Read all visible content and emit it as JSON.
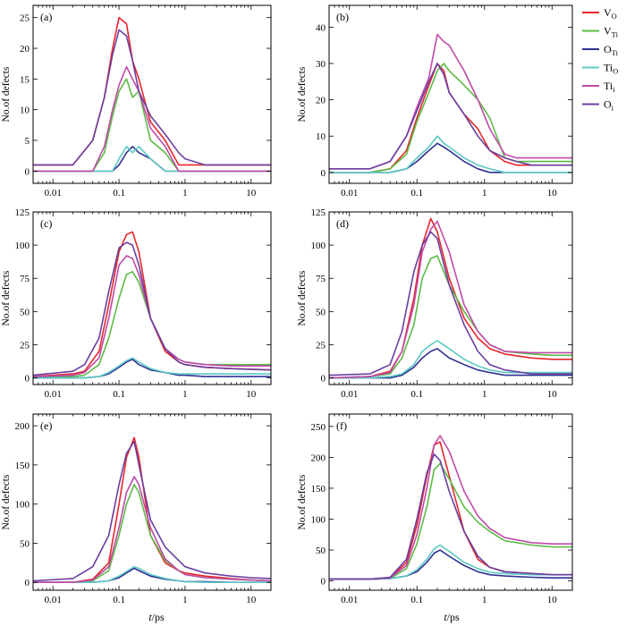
{
  "figure": {
    "xlabel_italic": "t",
    "xlabel_rest": "/ps",
    "ylabel": "No.of defects"
  },
  "legend": {
    "placement": "top-right",
    "items": [
      {
        "base": "V",
        "sub": "O",
        "color": "#e8262c"
      },
      {
        "base": "V",
        "sub": "Ti",
        "color": "#5dbb46"
      },
      {
        "base": "O",
        "sub": "Ti",
        "color": "#2e3192"
      },
      {
        "base": "Ti",
        "sub": "O",
        "color": "#5bc8c4"
      },
      {
        "base": "Ti",
        "sub": "i",
        "color": "#c04aa8"
      },
      {
        "base": "O",
        "sub": "i",
        "color": "#6a3fa0"
      }
    ]
  },
  "chart_data": [
    {
      "type": "line",
      "panel_label": "(a)",
      "x_scale": "log",
      "xlim": [
        0.005,
        20
      ],
      "x_ticks": [
        "0.01",
        "0.1",
        "1",
        "10"
      ],
      "ylim": [
        -2,
        27
      ],
      "y_ticks": [
        0,
        5,
        10,
        15,
        20,
        25
      ],
      "x": [
        0.005,
        0.02,
        0.04,
        0.06,
        0.08,
        0.1,
        0.13,
        0.16,
        0.2,
        0.3,
        0.5,
        0.8,
        1,
        2,
        5,
        20
      ],
      "series": [
        {
          "key": "V_O",
          "values": [
            1,
            1,
            5,
            12,
            20,
            25,
            24,
            18,
            15,
            8,
            5,
            1,
            1,
            1,
            1,
            1
          ]
        },
        {
          "key": "V_Ti",
          "values": [
            0,
            0,
            0,
            3,
            9,
            13,
            15,
            12,
            13,
            5,
            3,
            0,
            0,
            0,
            0,
            0
          ]
        },
        {
          "key": "O_Ti",
          "values": [
            0,
            0,
            0,
            0,
            0,
            1,
            3,
            4,
            3,
            2,
            0,
            0,
            0,
            0,
            0,
            0
          ]
        },
        {
          "key": "Ti_O",
          "values": [
            0,
            0,
            0,
            0,
            0,
            2,
            4,
            3,
            4,
            2,
            0,
            0,
            0,
            0,
            0,
            0
          ]
        },
        {
          "key": "Ti_i",
          "values": [
            0,
            0,
            0,
            4,
            10,
            14,
            17,
            15,
            13,
            7,
            4,
            0,
            0,
            0,
            0,
            0
          ]
        },
        {
          "key": "O_i",
          "values": [
            1,
            1,
            5,
            12,
            19,
            23,
            22,
            18,
            13,
            9,
            6,
            3,
            2,
            1,
            1,
            1
          ]
        }
      ]
    },
    {
      "type": "line",
      "panel_label": "(b)",
      "x_scale": "log",
      "xlim": [
        0.005,
        20
      ],
      "x_ticks": [
        "0.01",
        "0.1",
        "1",
        "10"
      ],
      "ylim": [
        -3,
        46
      ],
      "y_ticks": [
        0,
        10,
        20,
        30,
        40
      ],
      "x": [
        0.005,
        0.02,
        0.04,
        0.07,
        0.1,
        0.15,
        0.2,
        0.25,
        0.3,
        0.5,
        0.8,
        1.2,
        2,
        3,
        5,
        20
      ],
      "series": [
        {
          "key": "V_O",
          "values": [
            0,
            0,
            1,
            6,
            15,
            24,
            30,
            28,
            22,
            16,
            12,
            6,
            3,
            2,
            2,
            2
          ]
        },
        {
          "key": "V_Ti",
          "values": [
            0,
            0,
            1,
            5,
            14,
            22,
            28,
            30,
            28,
            24,
            20,
            15,
            4,
            3,
            3,
            3
          ]
        },
        {
          "key": "O_Ti",
          "values": [
            0,
            0,
            0,
            1,
            3,
            6,
            8,
            7,
            6,
            3,
            1,
            0,
            0,
            0,
            0,
            0
          ]
        },
        {
          "key": "Ti_O",
          "values": [
            0,
            0,
            0,
            1,
            4,
            7,
            10,
            8,
            7,
            4,
            2,
            1,
            0,
            0,
            0,
            0
          ]
        },
        {
          "key": "Ti_i",
          "values": [
            1,
            1,
            3,
            10,
            18,
            26,
            38,
            36,
            35,
            28,
            20,
            12,
            5,
            4,
            4,
            4
          ]
        },
        {
          "key": "O_i",
          "values": [
            1,
            1,
            3,
            10,
            17,
            25,
            30,
            27,
            22,
            16,
            10,
            6,
            4,
            3,
            2,
            2
          ]
        }
      ]
    },
    {
      "type": "line",
      "panel_label": "(c)",
      "x_scale": "log",
      "xlim": [
        0.005,
        20
      ],
      "x_ticks": [
        "0.01",
        "0.1",
        "1",
        "10"
      ],
      "ylim": [
        -5,
        125
      ],
      "y_ticks": [
        0,
        25,
        50,
        75,
        100,
        125
      ],
      "x": [
        0.005,
        0.02,
        0.03,
        0.05,
        0.07,
        0.1,
        0.13,
        0.16,
        0.2,
        0.3,
        0.5,
        0.8,
        1,
        2,
        5,
        20
      ],
      "series": [
        {
          "key": "V_O",
          "values": [
            1,
            3,
            5,
            20,
            55,
            95,
            108,
            110,
            95,
            45,
            20,
            12,
            10,
            8,
            7,
            6
          ]
        },
        {
          "key": "V_Ti",
          "values": [
            1,
            1,
            2,
            10,
            30,
            60,
            78,
            80,
            72,
            45,
            22,
            14,
            12,
            10,
            10,
            10
          ]
        },
        {
          "key": "O_Ti",
          "values": [
            0,
            0,
            0,
            1,
            3,
            8,
            12,
            14,
            10,
            6,
            4,
            2,
            2,
            1,
            1,
            1
          ]
        },
        {
          "key": "Ti_O",
          "values": [
            0,
            0,
            0,
            1,
            4,
            9,
            13,
            15,
            12,
            7,
            4,
            3,
            3,
            3,
            3,
            3
          ]
        },
        {
          "key": "Ti_i",
          "values": [
            1,
            2,
            4,
            15,
            45,
            85,
            92,
            90,
            78,
            45,
            22,
            14,
            12,
            10,
            9,
            9
          ]
        },
        {
          "key": "O_i",
          "values": [
            2,
            5,
            10,
            30,
            65,
            98,
            102,
            100,
            85,
            45,
            22,
            12,
            10,
            8,
            7,
            6
          ]
        }
      ]
    },
    {
      "type": "line",
      "panel_label": "(d)",
      "x_scale": "log",
      "xlim": [
        0.005,
        20
      ],
      "x_ticks": [
        "0.01",
        "0.1",
        "1",
        "10"
      ],
      "ylim": [
        -5,
        125
      ],
      "y_ticks": [
        0,
        25,
        50,
        75,
        100,
        125
      ],
      "x": [
        0.005,
        0.02,
        0.04,
        0.06,
        0.09,
        0.12,
        0.16,
        0.2,
        0.3,
        0.5,
        0.8,
        1.2,
        2,
        5,
        10,
        20
      ],
      "series": [
        {
          "key": "V_O",
          "values": [
            0,
            1,
            5,
            20,
            60,
            100,
            120,
            110,
            75,
            45,
            30,
            22,
            18,
            15,
            14,
            14
          ]
        },
        {
          "key": "V_Ti",
          "values": [
            0,
            1,
            3,
            15,
            40,
            75,
            90,
            92,
            70,
            50,
            35,
            25,
            20,
            18,
            17,
            17
          ]
        },
        {
          "key": "O_Ti",
          "values": [
            0,
            0,
            0,
            2,
            8,
            15,
            20,
            22,
            15,
            10,
            6,
            4,
            2,
            2,
            2,
            2
          ]
        },
        {
          "key": "Ti_O",
          "values": [
            0,
            0,
            1,
            3,
            10,
            20,
            25,
            28,
            22,
            14,
            9,
            6,
            4,
            4,
            4,
            4
          ]
        },
        {
          "key": "Ti_i",
          "values": [
            0,
            1,
            4,
            20,
            55,
            95,
            112,
            118,
            95,
            55,
            35,
            25,
            20,
            19,
            19,
            19
          ]
        },
        {
          "key": "O_i",
          "values": [
            2,
            3,
            10,
            35,
            80,
            100,
            110,
            105,
            70,
            40,
            20,
            10,
            6,
            3,
            3,
            3
          ]
        }
      ]
    },
    {
      "type": "line",
      "panel_label": "(e)",
      "x_scale": "log",
      "xlim": [
        0.005,
        20
      ],
      "x_ticks": [
        "0.01",
        "0.1",
        "1",
        "10"
      ],
      "ylim": [
        -10,
        215
      ],
      "y_ticks": [
        0,
        50,
        100,
        150,
        200
      ],
      "x": [
        0.005,
        0.02,
        0.04,
        0.07,
        0.1,
        0.13,
        0.17,
        0.2,
        0.3,
        0.5,
        0.8,
        1,
        2,
        5,
        10,
        20
      ],
      "series": [
        {
          "key": "V_O",
          "values": [
            0,
            0,
            4,
            25,
            100,
            160,
            185,
            160,
            60,
            25,
            15,
            12,
            8,
            5,
            3,
            2
          ]
        },
        {
          "key": "V_Ti",
          "values": [
            0,
            0,
            2,
            15,
            60,
            100,
            125,
            115,
            60,
            28,
            15,
            10,
            6,
            4,
            3,
            2
          ]
        },
        {
          "key": "O_Ti",
          "values": [
            0,
            0,
            0,
            2,
            6,
            12,
            18,
            15,
            8,
            4,
            2,
            1,
            1,
            0,
            0,
            0
          ]
        },
        {
          "key": "Ti_O",
          "values": [
            0,
            0,
            0,
            2,
            8,
            14,
            20,
            18,
            10,
            5,
            2,
            1,
            0,
            0,
            0,
            0
          ]
        },
        {
          "key": "Ti_i",
          "values": [
            0,
            0,
            3,
            20,
            70,
            115,
            135,
            125,
            70,
            30,
            15,
            10,
            6,
            4,
            3,
            2
          ]
        },
        {
          "key": "O_i",
          "values": [
            2,
            5,
            20,
            60,
            125,
            165,
            180,
            150,
            80,
            45,
            28,
            20,
            12,
            8,
            6,
            5
          ]
        }
      ]
    },
    {
      "type": "line",
      "panel_label": "(f)",
      "x_scale": "log",
      "xlim": [
        0.005,
        20
      ],
      "x_ticks": [
        "0.01",
        "0.1",
        "1",
        "10"
      ],
      "ylim": [
        -15,
        270
      ],
      "y_ticks": [
        0,
        50,
        100,
        150,
        200,
        250
      ],
      "x": [
        0.005,
        0.02,
        0.04,
        0.07,
        0.1,
        0.14,
        0.18,
        0.22,
        0.3,
        0.5,
        0.8,
        1.2,
        2,
        5,
        10,
        20
      ],
      "series": [
        {
          "key": "V_O",
          "values": [
            3,
            3,
            5,
            30,
            90,
            170,
            220,
            225,
            170,
            80,
            35,
            22,
            15,
            12,
            10,
            10
          ]
        },
        {
          "key": "V_Ti",
          "values": [
            3,
            3,
            4,
            20,
            60,
            120,
            180,
            190,
            165,
            120,
            95,
            80,
            65,
            58,
            55,
            55
          ]
        },
        {
          "key": "O_Ti",
          "values": [
            3,
            3,
            4,
            8,
            15,
            30,
            45,
            50,
            40,
            25,
            15,
            10,
            8,
            6,
            5,
            5
          ]
        },
        {
          "key": "Ti_O",
          "values": [
            3,
            3,
            4,
            8,
            18,
            35,
            52,
            58,
            48,
            30,
            20,
            14,
            12,
            10,
            10,
            10
          ]
        },
        {
          "key": "Ti_i",
          "values": [
            3,
            3,
            5,
            25,
            75,
            150,
            220,
            235,
            210,
            145,
            105,
            85,
            70,
            62,
            60,
            60
          ]
        },
        {
          "key": "O_i",
          "values": [
            3,
            3,
            6,
            35,
            100,
            175,
            205,
            195,
            145,
            80,
            40,
            22,
            15,
            12,
            10,
            10
          ]
        }
      ]
    }
  ]
}
